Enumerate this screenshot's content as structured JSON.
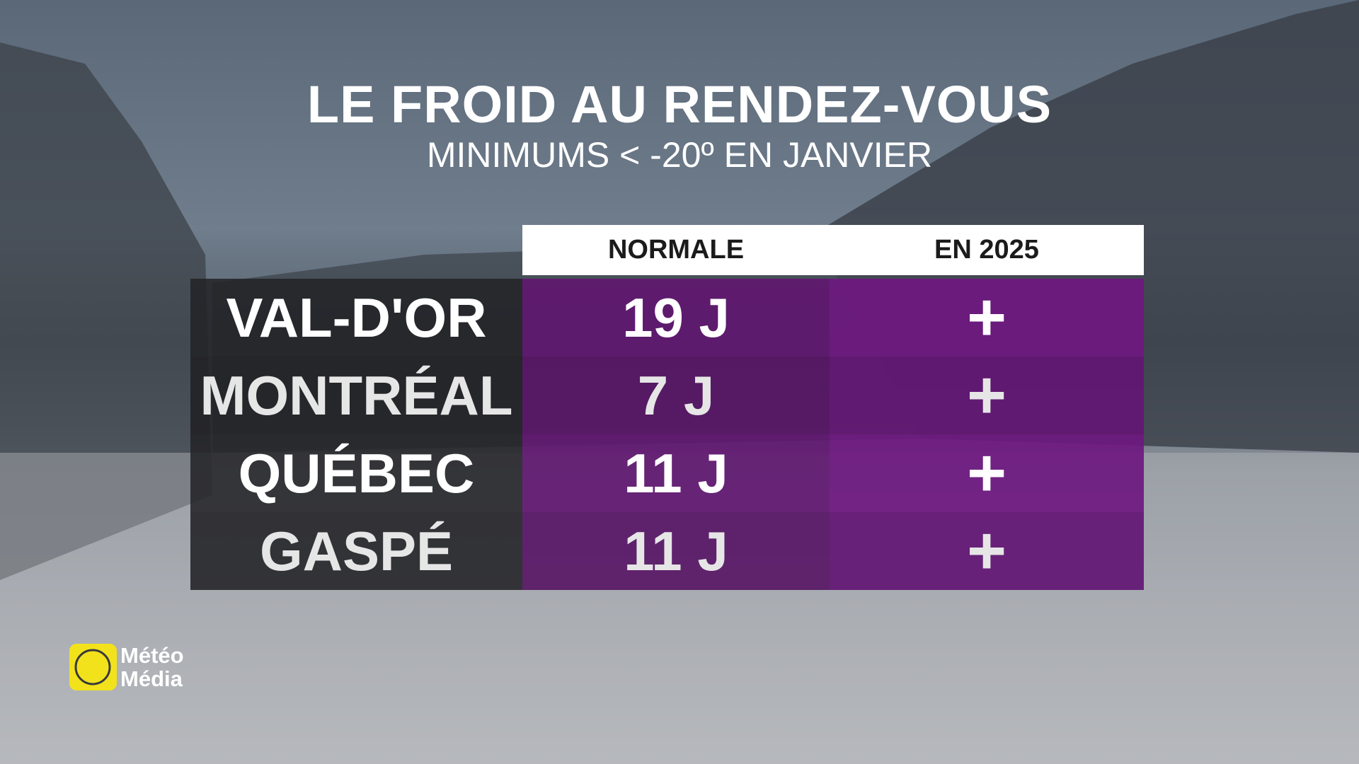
{
  "header": {
    "title": "LE FROID AU RENDEZ-VOUS",
    "subtitle": "MINIMUMS < -20º EN JANVIER"
  },
  "table": {
    "columns": [
      "NORMALE",
      "EN 2025"
    ],
    "rows": [
      [
        "VAL-D'OR",
        "19 J",
        "+"
      ],
      [
        "MONTRÉAL",
        "7 J",
        "+"
      ],
      [
        "QUÉBEC",
        "11 J",
        "+"
      ],
      [
        "GASPÉ",
        "11 J",
        "+"
      ]
    ]
  },
  "logo": {
    "line1": "Météo",
    "line2": "Média"
  }
}
